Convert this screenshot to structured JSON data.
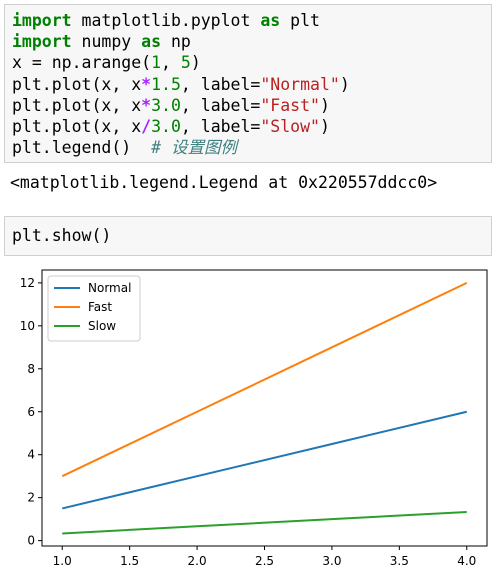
{
  "cell1": {
    "line1": {
      "kw1": "import",
      "mod": " matplotlib.pyplot ",
      "kw2": "as",
      "alias": " plt"
    },
    "line2": {
      "kw1": "import",
      "mod": " numpy ",
      "kw2": "as",
      "alias": " np"
    },
    "line3": {
      "pre": "x = np.arange(",
      "n1": "1",
      "sep": ", ",
      "n2": "5",
      "post": ")"
    },
    "line4": {
      "pre": "plt.plot(x, x",
      "op": "*",
      "num": "1.5",
      "mid": ", label=",
      "str": "\"Normal\"",
      "post": ")"
    },
    "line5": {
      "pre": "plt.plot(x, x",
      "op": "*",
      "num": "3.0",
      "mid": ", label=",
      "str": "\"Fast\"",
      "post": ")"
    },
    "line6": {
      "pre": "plt.plot(x, x",
      "op": "/",
      "num": "3.0",
      "mid": ", label=",
      "str": "\"Slow\"",
      "post": ")"
    },
    "line7": {
      "code": "plt.legend()  ",
      "comment": "# 设置图例"
    }
  },
  "output": "<matplotlib.legend.Legend at 0x220557ddcc0>",
  "cell2": {
    "code": "plt.show()"
  },
  "chart_data": {
    "type": "line",
    "x": [
      1.0,
      2.0,
      3.0,
      4.0
    ],
    "series": [
      {
        "name": "Normal",
        "values": [
          1.5,
          3.0,
          4.5,
          6.0
        ],
        "color": "#1f77b4"
      },
      {
        "name": "Fast",
        "values": [
          3.0,
          6.0,
          9.0,
          12.0
        ],
        "color": "#ff7f0e"
      },
      {
        "name": "Slow",
        "values": [
          0.333,
          0.667,
          1.0,
          1.333
        ],
        "color": "#2ca02c"
      }
    ],
    "xticks": [
      "1.0",
      "1.5",
      "2.0",
      "2.5",
      "3.0",
      "3.5",
      "4.0"
    ],
    "yticks": [
      "0",
      "2",
      "4",
      "6",
      "8",
      "10",
      "12"
    ],
    "xlim": [
      0.85,
      4.15
    ],
    "ylim": [
      -0.25,
      12.6
    ],
    "legend": "upper-left",
    "grid": false
  }
}
